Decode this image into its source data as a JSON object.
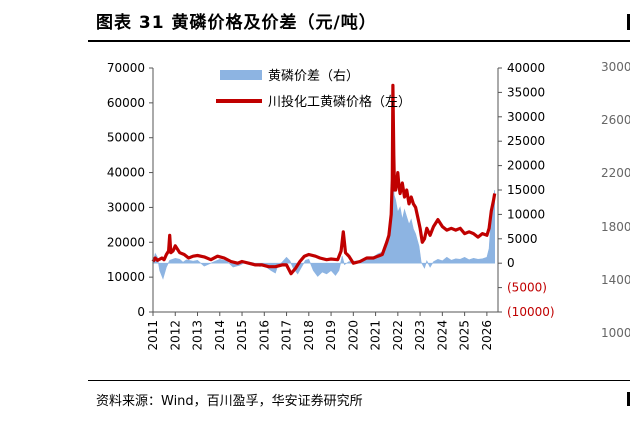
{
  "page": {
    "title": "图表 31 黄磷价格及价差（元/吨）",
    "source": "资料来源：Wind，百川盈孚，华安证券研究所"
  },
  "side_axis_ticks": [
    "3000",
    "2600",
    "2200",
    "1800",
    "1400",
    "1000"
  ],
  "chart_data": {
    "type": "line",
    "title": "",
    "x_ticks": [
      "2011",
      "2012",
      "2013",
      "2014",
      "2015",
      "2016",
      "2017",
      "2018",
      "2019",
      "2020",
      "2021",
      "2022",
      "2023",
      "2024",
      "2025",
      "2026"
    ],
    "left_axis": {
      "ylim": [
        0,
        70000
      ],
      "ticks": [
        "0",
        "10000",
        "20000",
        "30000",
        "40000",
        "50000",
        "60000",
        "70000"
      ]
    },
    "right_axis": {
      "ylim": [
        -10000,
        40000
      ],
      "ticks": [
        "(10000)",
        "(5000)",
        "0",
        "5000",
        "10000",
        "15000",
        "20000",
        "25000",
        "30000",
        "35000",
        "40000"
      ],
      "negative_color": "#c00000"
    },
    "legend_position": "top-left",
    "colors": {
      "spread": "#8db4e2",
      "price": "#c00000"
    },
    "series": [
      {
        "name": "黄磷价差（右）",
        "kind": "area",
        "axis": "right",
        "points": [
          [
            2011.0,
            0
          ],
          [
            2011.1,
            2000
          ],
          [
            2011.2,
            1200
          ],
          [
            2011.3,
            -1500
          ],
          [
            2011.45,
            -3200
          ],
          [
            2011.6,
            -800
          ],
          [
            2011.75,
            600
          ],
          [
            2012.0,
            1000
          ],
          [
            2012.2,
            800
          ],
          [
            2012.35,
            200
          ],
          [
            2012.5,
            700
          ],
          [
            2012.8,
            400
          ],
          [
            2013.0,
            600
          ],
          [
            2013.3,
            -600
          ],
          [
            2013.5,
            -200
          ],
          [
            2013.8,
            400
          ],
          [
            2014.0,
            800
          ],
          [
            2014.3,
            500
          ],
          [
            2014.6,
            -800
          ],
          [
            2014.9,
            -400
          ],
          [
            2015.2,
            300
          ],
          [
            2015.5,
            100
          ],
          [
            2015.8,
            -700
          ],
          [
            2016.0,
            -500
          ],
          [
            2016.3,
            -1500
          ],
          [
            2016.5,
            -2000
          ],
          [
            2016.6,
            -600
          ],
          [
            2016.8,
            200
          ],
          [
            2017.0,
            1200
          ],
          [
            2017.15,
            500
          ],
          [
            2017.3,
            -1000
          ],
          [
            2017.5,
            -2200
          ],
          [
            2017.7,
            -600
          ],
          [
            2017.85,
            600
          ],
          [
            2018.0,
            800
          ],
          [
            2018.2,
            -1500
          ],
          [
            2018.4,
            -2700
          ],
          [
            2018.6,
            -1800
          ],
          [
            2018.8,
            -2200
          ],
          [
            2019.0,
            -1500
          ],
          [
            2019.2,
            -2500
          ],
          [
            2019.35,
            -1500
          ],
          [
            2019.5,
            1500
          ],
          [
            2019.6,
            -300
          ],
          [
            2019.8,
            300
          ],
          [
            2020.0,
            400
          ],
          [
            2020.3,
            500
          ],
          [
            2020.6,
            800
          ],
          [
            2020.9,
            1300
          ],
          [
            2021.1,
            1900
          ],
          [
            2021.3,
            2300
          ],
          [
            2021.5,
            3500
          ],
          [
            2021.6,
            5200
          ],
          [
            2021.7,
            8000
          ],
          [
            2021.78,
            25000
          ],
          [
            2021.83,
            14000
          ],
          [
            2021.9,
            13000
          ],
          [
            2022.0,
            10500
          ],
          [
            2022.1,
            11500
          ],
          [
            2022.2,
            9000
          ],
          [
            2022.3,
            11000
          ],
          [
            2022.4,
            9500
          ],
          [
            2022.5,
            8000
          ],
          [
            2022.6,
            9000
          ],
          [
            2022.7,
            7000
          ],
          [
            2022.8,
            6000
          ],
          [
            2022.95,
            3500
          ],
          [
            2023.05,
            200
          ],
          [
            2023.2,
            -1000
          ],
          [
            2023.3,
            500
          ],
          [
            2023.45,
            -800
          ],
          [
            2023.6,
            300
          ],
          [
            2023.8,
            800
          ],
          [
            2024.0,
            500
          ],
          [
            2024.2,
            1200
          ],
          [
            2024.4,
            600
          ],
          [
            2024.6,
            900
          ],
          [
            2024.8,
            800
          ],
          [
            2025.0,
            1200
          ],
          [
            2025.2,
            700
          ],
          [
            2025.4,
            1000
          ],
          [
            2025.6,
            800
          ],
          [
            2025.8,
            900
          ],
          [
            2026.0,
            1200
          ],
          [
            2026.1,
            3000
          ],
          [
            2026.15,
            6500
          ],
          [
            2026.2,
            9500
          ],
          [
            2026.3,
            13500
          ],
          [
            2026.35,
            15000
          ]
        ]
      },
      {
        "name": "川投化工黄磷价格（左）",
        "kind": "line",
        "axis": "left",
        "points": [
          [
            2011.0,
            14500
          ],
          [
            2011.1,
            15500
          ],
          [
            2011.2,
            14800
          ],
          [
            2011.4,
            15500
          ],
          [
            2011.5,
            15000
          ],
          [
            2011.6,
            16500
          ],
          [
            2011.7,
            17500
          ],
          [
            2011.75,
            22000
          ],
          [
            2011.8,
            17000
          ],
          [
            2011.9,
            17500
          ],
          [
            2012.0,
            19000
          ],
          [
            2012.2,
            17000
          ],
          [
            2012.4,
            16500
          ],
          [
            2012.6,
            15500
          ],
          [
            2012.8,
            16000
          ],
          [
            2013.0,
            16200
          ],
          [
            2013.3,
            15800
          ],
          [
            2013.6,
            15000
          ],
          [
            2013.9,
            16000
          ],
          [
            2014.2,
            15500
          ],
          [
            2014.5,
            14500
          ],
          [
            2014.8,
            14000
          ],
          [
            2015.0,
            14500
          ],
          [
            2015.3,
            14000
          ],
          [
            2015.6,
            13500
          ],
          [
            2015.9,
            13500
          ],
          [
            2016.2,
            13000
          ],
          [
            2016.5,
            13000
          ],
          [
            2016.8,
            13500
          ],
          [
            2017.0,
            13500
          ],
          [
            2017.2,
            11000
          ],
          [
            2017.4,
            12500
          ],
          [
            2017.6,
            14500
          ],
          [
            2017.8,
            16000
          ],
          [
            2018.0,
            16500
          ],
          [
            2018.3,
            16000
          ],
          [
            2018.5,
            15500
          ],
          [
            2018.8,
            15000
          ],
          [
            2019.0,
            15200
          ],
          [
            2019.3,
            15000
          ],
          [
            2019.45,
            17500
          ],
          [
            2019.55,
            23000
          ],
          [
            2019.65,
            17000
          ],
          [
            2019.8,
            16000
          ],
          [
            2020.0,
            14000
          ],
          [
            2020.3,
            14500
          ],
          [
            2020.6,
            15500
          ],
          [
            2020.9,
            15500
          ],
          [
            2021.1,
            16000
          ],
          [
            2021.3,
            16500
          ],
          [
            2021.5,
            20000
          ],
          [
            2021.6,
            22000
          ],
          [
            2021.7,
            28000
          ],
          [
            2021.75,
            38000
          ],
          [
            2021.78,
            65000
          ],
          [
            2021.82,
            45000
          ],
          [
            2021.85,
            35000
          ],
          [
            2021.9,
            35000
          ],
          [
            2022.0,
            40000
          ],
          [
            2022.05,
            36000
          ],
          [
            2022.1,
            34000
          ],
          [
            2022.2,
            37000
          ],
          [
            2022.3,
            33000
          ],
          [
            2022.4,
            35000
          ],
          [
            2022.5,
            31000
          ],
          [
            2022.6,
            33000
          ],
          [
            2022.7,
            31000
          ],
          [
            2022.8,
            30000
          ],
          [
            2022.9,
            27000
          ],
          [
            2023.0,
            24000
          ],
          [
            2023.1,
            20000
          ],
          [
            2023.2,
            21000
          ],
          [
            2023.3,
            24000
          ],
          [
            2023.45,
            22000
          ],
          [
            2023.6,
            24500
          ],
          [
            2023.8,
            26500
          ],
          [
            2024.0,
            24500
          ],
          [
            2024.2,
            23500
          ],
          [
            2024.4,
            24000
          ],
          [
            2024.6,
            23500
          ],
          [
            2024.8,
            24000
          ],
          [
            2025.0,
            22500
          ],
          [
            2025.2,
            23000
          ],
          [
            2025.4,
            22500
          ],
          [
            2025.6,
            21500
          ],
          [
            2025.8,
            22500
          ],
          [
            2026.0,
            22000
          ],
          [
            2026.1,
            24000
          ],
          [
            2026.2,
            29000
          ],
          [
            2026.3,
            32000
          ],
          [
            2026.35,
            34000
          ]
        ]
      }
    ]
  }
}
